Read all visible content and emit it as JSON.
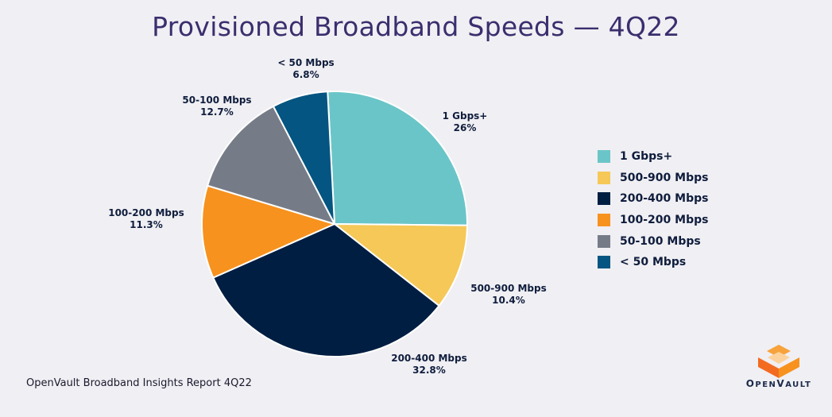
{
  "title": "Provisioned Broadband Speeds — 4Q22",
  "source": "OpenVault Broadband Insights Report 4Q22",
  "logo": {
    "text": "OpenVault",
    "icon": "openvault-logo-icon"
  },
  "colors": {
    "background": "#f0eff3",
    "title": "#3b2e6e",
    "label": "#0f1d3d"
  },
  "chart_data": {
    "type": "pie",
    "title": "Provisioned Broadband Speeds — 4Q22",
    "slices": [
      {
        "label": "1 Gbps+",
        "value": 26,
        "display": "26%",
        "color": "#6ac5c8"
      },
      {
        "label": "500-900 Mbps",
        "value": 10.4,
        "display": "10.4%",
        "color": "#f5c857"
      },
      {
        "label": "200-400 Mbps",
        "value": 32.8,
        "display": "32.8%",
        "color": "#001e42"
      },
      {
        "label": "100-200 Mbps",
        "value": 11.3,
        "display": "11.3%",
        "color": "#f7921e"
      },
      {
        "label": "50-100 Mbps",
        "value": 12.7,
        "display": "12.7%",
        "color": "#767c87"
      },
      {
        "label": "< 50 Mbps",
        "value": 6.8,
        "display": "6.8%",
        "color": "#045581"
      }
    ],
    "legend_position": "right"
  }
}
